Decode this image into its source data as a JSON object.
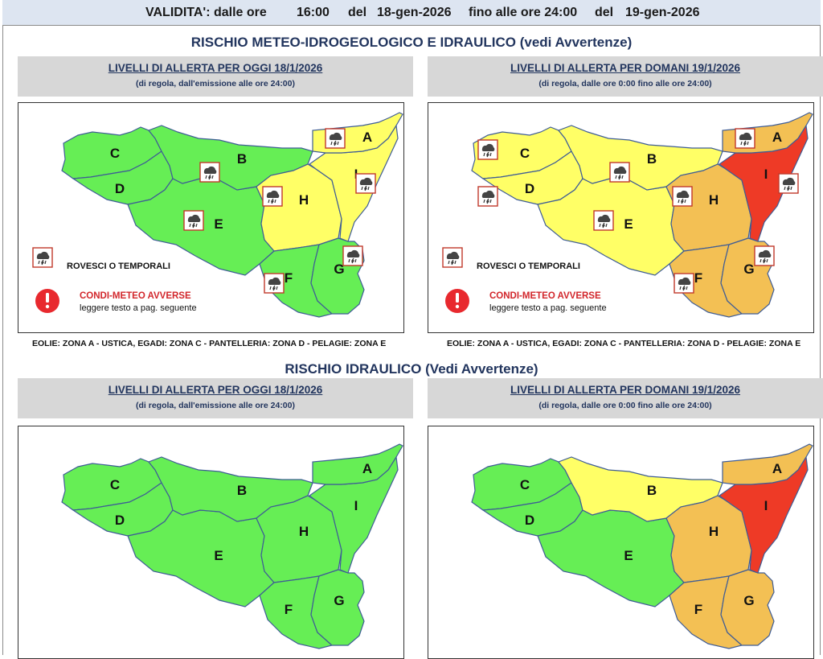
{
  "validity": {
    "label": "VALIDITA': dalle ore",
    "from_time": "16:00",
    "del1": "del",
    "from_date": "18-gen-2026",
    "until_label": "fino alle ore 24:00",
    "del2": "del",
    "to_date": "19-gen-2026"
  },
  "sections": {
    "meteo_title": "RISCHIO METEO-IDROGEOLOGICO E IDRAULICO (vedi Avvertenze)",
    "idraulico_title": "RISCHIO IDRAULICO (Vedi Avvertenze)"
  },
  "panels": {
    "today_title": "LIVELLI DI ALLERTA PER OGGI 18/1/2026",
    "today_sub": "(di regola, dall'emissione alle ore 24:00)",
    "tomorrow_title": "LIVELLI DI ALLERTA PER DOMANI 19/1/2026",
    "tomorrow_sub": "(di regola, dalle ore 0:00 fino alle ore 24:00)"
  },
  "legend": {
    "storms": "ROVESCI O TEMPORALI",
    "adverse": "CONDI-METEO AVVERSE",
    "adverse_note": "leggere testo a pag. seguente"
  },
  "islands_note": "EOLIE: ZONA A - USTICA, EGADI: ZONA C - PANTELLERIA: ZONA D - PELAGIE: ZONA E",
  "zone_labels": {
    "A": "A",
    "B": "B",
    "C": "C",
    "D": "D",
    "E": "E",
    "F": "F",
    "G": "G",
    "H": "H",
    "I": "I"
  },
  "alert_colors": {
    "green": "#66ee55",
    "yellow": "#ffff66",
    "orange": "#f3c054",
    "red": "#ee3a26"
  },
  "maps": {
    "meteo_today": {
      "A": "yellow",
      "B": "green",
      "C": "green",
      "D": "green",
      "E": "green",
      "F": "green",
      "G": "green",
      "H": "yellow",
      "I": "yellow"
    },
    "meteo_tomorrow": {
      "A": "orange",
      "B": "yellow",
      "C": "yellow",
      "D": "yellow",
      "E": "yellow",
      "F": "orange",
      "G": "orange",
      "H": "orange",
      "I": "red"
    },
    "idraulico_today": {
      "A": "green",
      "B": "green",
      "C": "green",
      "D": "green",
      "E": "green",
      "F": "green",
      "G": "green",
      "H": "green",
      "I": "green"
    },
    "idraulico_tomorrow": {
      "A": "orange",
      "B": "yellow",
      "C": "green",
      "D": "green",
      "E": "green",
      "F": "orange",
      "G": "orange",
      "H": "orange",
      "I": "red"
    }
  },
  "icons": {
    "storm": "rain-cloud-icon",
    "warning": "exclamation-icon"
  }
}
